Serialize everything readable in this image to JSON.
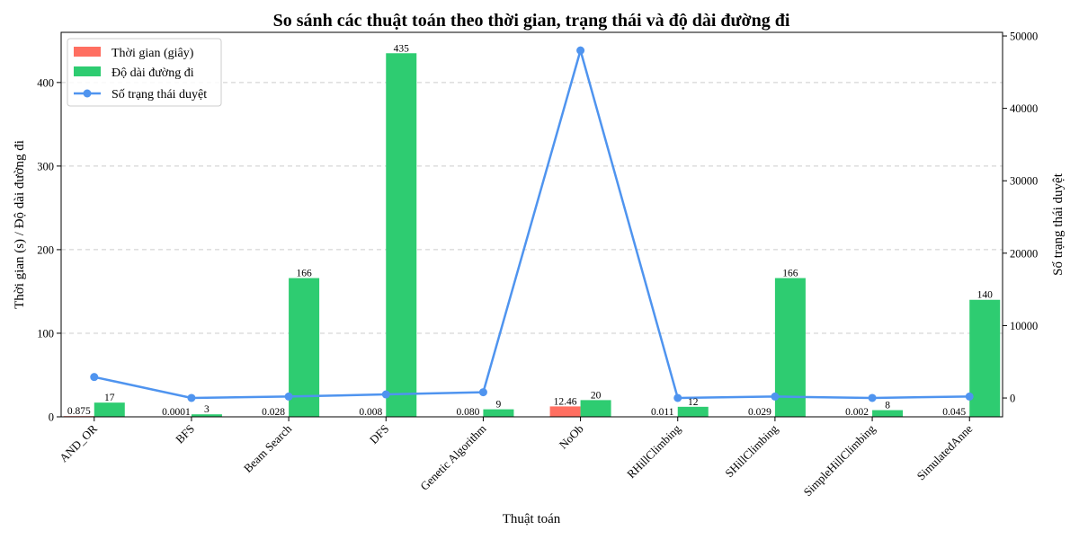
{
  "chart_data": {
    "type": "bar",
    "title": "So sánh các thuật toán theo thời gian, trạng thái và độ dài đường đi",
    "xlabel": "Thuật toán",
    "ylabel": "Thời gian (s) / Độ dài đường đi",
    "y2label": "Số trạng thái duyệt",
    "ylim": [
      0,
      460
    ],
    "y2lim": [
      -2600,
      50500
    ],
    "yticks": [
      0,
      100,
      200,
      300,
      400
    ],
    "y2ticks": [
      0,
      10000,
      20000,
      30000,
      40000,
      50000
    ],
    "grid": true,
    "legend_position": "top-left",
    "categories": [
      "AND_OR",
      "BFS",
      "Beam Search",
      "DFS",
      "Genetic Algorithm",
      "NoOb",
      "RHillClimbing",
      "SHillClimbing",
      "SimpleHillClimbing",
      "SimulatedAnne"
    ],
    "series": [
      {
        "name": "Thời gian (giây)",
        "kind": "bar",
        "axis": "left",
        "color": "#ff6f61",
        "values": [
          0.875,
          0.0001,
          0.028,
          0.008,
          0.08,
          12.46,
          0.011,
          0.029,
          0.002,
          0.045
        ],
        "labels": [
          "0.875",
          "0.0001",
          "0.028",
          "0.008",
          "0.080",
          "12.46",
          "0.011",
          "0.029",
          "0.002",
          "0.045"
        ]
      },
      {
        "name": "Độ dài đường đi",
        "kind": "bar",
        "axis": "left",
        "color": "#2ecc71",
        "values": [
          17,
          3,
          166,
          435,
          9,
          20,
          12,
          166,
          8,
          140
        ],
        "labels": [
          "17",
          "3",
          "166",
          "435",
          "9",
          "20",
          "12",
          "166",
          "8",
          "140"
        ]
      },
      {
        "name": "Số trạng thái duyệt",
        "kind": "line",
        "axis": "right",
        "color": "#4f94ef",
        "values": [
          2900,
          10,
          200,
          500,
          800,
          48000,
          10,
          200,
          10,
          200
        ]
      }
    ]
  }
}
